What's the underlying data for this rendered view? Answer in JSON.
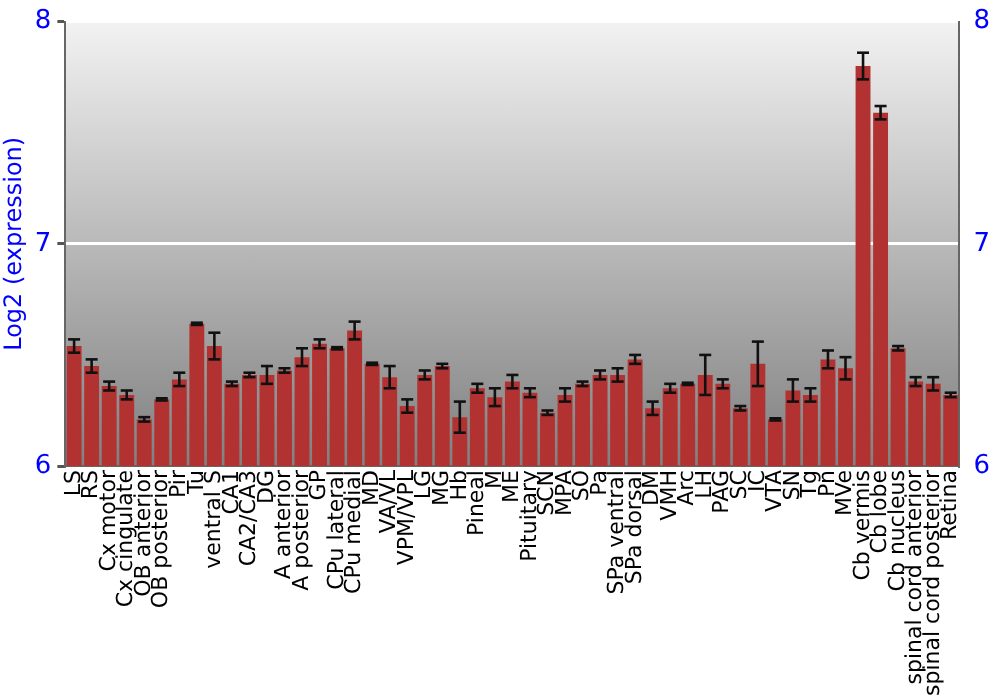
{
  "chart_data": {
    "type": "bar",
    "ylabel": "Log2 (expression)",
    "categories": [
      "LS",
      "RS",
      "Cx motor",
      "Cx cingulate",
      "OB anterior",
      "OB posterior",
      "Pir",
      "Tu",
      "ventral S",
      "CA1",
      "CA2/CA3",
      "DG",
      "A anterior",
      "A posterior",
      "GP",
      "CPu lateral",
      "CPu medial",
      "MD",
      "VA/VL",
      "VPM/VPL",
      "LG",
      "MG",
      "Hb",
      "Pineal",
      "M",
      "ME",
      "Pituitary",
      "SCN",
      "MPA",
      "SO",
      "Pa",
      "SPa ventral",
      "SPa dorsal",
      "DM",
      "VMH",
      "Arc",
      "LH",
      "PAG",
      "SC",
      "IC",
      "VTA",
      "SN",
      "Tg",
      "Pn",
      "MVe",
      "Cb vermis",
      "Cb lobe",
      "Cb nucleus",
      "spinal cord anterior",
      "spinal cord posterior",
      "Retina"
    ],
    "values": [
      6.54,
      6.45,
      6.36,
      6.32,
      6.21,
      6.3,
      6.39,
      6.64,
      6.54,
      6.37,
      6.41,
      6.41,
      6.43,
      6.49,
      6.55,
      6.53,
      6.61,
      6.46,
      6.4,
      6.27,
      6.41,
      6.45,
      6.22,
      6.35,
      6.31,
      6.38,
      6.33,
      6.24,
      6.32,
      6.37,
      6.41,
      6.41,
      6.48,
      6.26,
      6.35,
      6.37,
      6.41,
      6.37,
      6.26,
      6.46,
      6.21,
      6.34,
      6.32,
      6.48,
      6.44,
      7.8,
      7.59,
      6.53,
      6.38,
      6.37,
      6.32
    ],
    "errors": [
      0.03,
      0.03,
      0.02,
      0.02,
      0.01,
      0.005,
      0.03,
      0.005,
      0.06,
      0.01,
      0.01,
      0.04,
      0.01,
      0.04,
      0.02,
      0.005,
      0.04,
      0.005,
      0.05,
      0.03,
      0.02,
      0.01,
      0.07,
      0.02,
      0.04,
      0.03,
      0.02,
      0.01,
      0.03,
      0.01,
      0.02,
      0.03,
      0.02,
      0.03,
      0.02,
      0.005,
      0.09,
      0.02,
      0.01,
      0.1,
      0.005,
      0.05,
      0.03,
      0.04,
      0.05,
      0.06,
      0.03,
      0.01,
      0.02,
      0.03,
      0.01
    ],
    "color": "#b23232",
    "ylim": [
      6,
      8
    ],
    "yticks": [
      6,
      7,
      8
    ],
    "y2lim": [
      6,
      8
    ],
    "y2ticks": [
      6,
      7,
      8
    ],
    "grid": "y",
    "legend": false
  }
}
